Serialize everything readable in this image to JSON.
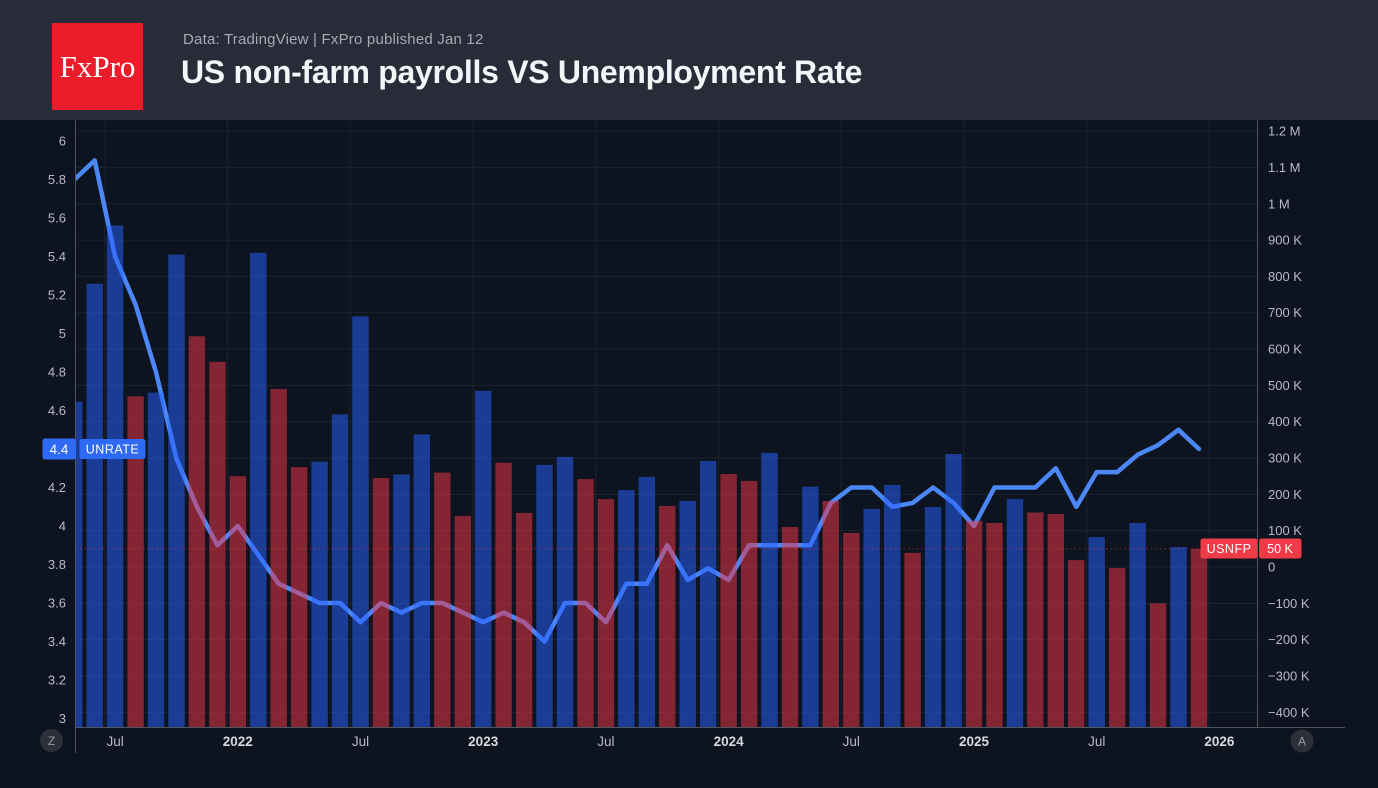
{
  "header": {
    "logo_text": "FxPro",
    "subtitle": "Data: TradingView  |  FxPro published Jan 12",
    "title": "US non-farm payrolls VS Unemployment Rate"
  },
  "badges": {
    "left": "Z",
    "right": "A"
  },
  "colors": {
    "page_bg": "#0d1420",
    "header_bg": "#272c38",
    "logo_bg": "#ec1c2b",
    "column_up": "#2962ff",
    "column_down": "#f23645",
    "line": "#4b87f7",
    "tag_blue": "#2f6af5",
    "tag_red": "#ef3b47",
    "axis_text": "#b7bbc5",
    "axis_text_bold": "#d6d9df",
    "axis_line": "#50555e",
    "grid": "rgba(205,210,222,0.08)"
  },
  "chart_data": {
    "type": "mixed",
    "title": "US non-farm payrolls VS Unemployment Rate",
    "legend_position": "price-tags-on-axes",
    "grid": true,
    "months": [
      "2021-05",
      "2021-06",
      "2021-07",
      "2021-08",
      "2021-09",
      "2021-10",
      "2021-11",
      "2021-12",
      "2022-01",
      "2022-02",
      "2022-03",
      "2022-04",
      "2022-05",
      "2022-06",
      "2022-07",
      "2022-08",
      "2022-09",
      "2022-10",
      "2022-11",
      "2022-12",
      "2023-01",
      "2023-02",
      "2023-03",
      "2023-04",
      "2023-05",
      "2023-06",
      "2023-07",
      "2023-08",
      "2023-09",
      "2023-10",
      "2023-11",
      "2023-12",
      "2024-01",
      "2024-02",
      "2024-03",
      "2024-04",
      "2024-05",
      "2024-06",
      "2024-07",
      "2024-08",
      "2024-09",
      "2024-10",
      "2024-11",
      "2024-12",
      "2025-01",
      "2025-02",
      "2025-03",
      "2025-04",
      "2025-05",
      "2025-06",
      "2025-07",
      "2025-08",
      "2025-09",
      "2025-10",
      "2025-11",
      "2025-12"
    ],
    "series": [
      {
        "name": "USNFP",
        "type": "column",
        "axis": "right",
        "unit": "thousands of jobs",
        "color_rising": "#2962ff",
        "color_falling": "#f23645",
        "values": [
          455,
          780,
          940,
          470,
          480,
          860,
          635,
          565,
          250,
          865,
          490,
          275,
          290,
          420,
          690,
          245,
          255,
          365,
          260,
          140,
          485,
          287,
          149,
          281,
          303,
          242,
          187,
          212,
          248,
          168,
          182,
          292,
          256,
          237,
          314,
          110,
          221,
          182,
          94,
          160,
          226,
          39,
          165,
          311,
          127,
          121,
          187,
          150,
          146,
          19,
          82,
          -3,
          121,
          -100,
          55,
          50
        ]
      },
      {
        "name": "UNRATE",
        "type": "line",
        "axis": "left",
        "unit": "%",
        "color": "#4b87f7",
        "values": [
          5.8,
          5.9,
          5.4,
          5.15,
          4.8,
          4.35,
          4.1,
          3.9,
          4.0,
          3.85,
          3.7,
          3.65,
          3.6,
          3.6,
          3.5,
          3.6,
          3.55,
          3.6,
          3.6,
          3.55,
          3.5,
          3.55,
          3.5,
          3.4,
          3.6,
          3.6,
          3.5,
          3.7,
          3.7,
          3.9,
          3.72,
          3.78,
          3.72,
          3.9,
          3.9,
          3.9,
          3.9,
          4.12,
          4.2,
          4.2,
          4.1,
          4.12,
          4.2,
          4.12,
          4.0,
          4.2,
          4.2,
          4.2,
          4.3,
          4.1,
          4.28,
          4.28,
          4.37,
          4.42,
          4.5,
          4.4
        ]
      }
    ],
    "left_axis": {
      "min": 3,
      "max": 6,
      "ticks": [
        {
          "label": "6",
          "value": 6
        },
        {
          "label": "5.8",
          "value": 5.8
        },
        {
          "label": "5.6",
          "value": 5.6
        },
        {
          "label": "5.4",
          "value": 5.4
        },
        {
          "label": "5.2",
          "value": 5.2
        },
        {
          "label": "5",
          "value": 5
        },
        {
          "label": "4.8",
          "value": 4.8
        },
        {
          "label": "4.6",
          "value": 4.6
        },
        {
          "label": "4.4",
          "value": 4.4
        },
        {
          "label": "4.2",
          "value": 4.2
        },
        {
          "label": "4",
          "value": 4
        },
        {
          "label": "3.8",
          "value": 3.8
        },
        {
          "label": "3.6",
          "value": 3.6
        },
        {
          "label": "3.4",
          "value": 3.4
        },
        {
          "label": "3.2",
          "value": 3.2
        },
        {
          "label": "3",
          "value": 3
        }
      ]
    },
    "right_axis": {
      "min": -430,
      "max": 1230,
      "ticks": [
        {
          "label": "1.2 M",
          "value": 1200
        },
        {
          "label": "1.1 M",
          "value": 1100
        },
        {
          "label": "1 M",
          "value": 1000
        },
        {
          "label": "900 K",
          "value": 900
        },
        {
          "label": "800 K",
          "value": 800
        },
        {
          "label": "700 K",
          "value": 700
        },
        {
          "label": "600 K",
          "value": 600
        },
        {
          "label": "500 K",
          "value": 500
        },
        {
          "label": "400 K",
          "value": 400
        },
        {
          "label": "300 K",
          "value": 300
        },
        {
          "label": "200 K",
          "value": 200
        },
        {
          "label": "100 K",
          "value": 100
        },
        {
          "label": "0",
          "value": 0
        },
        {
          "label": "−100 K",
          "value": -100
        },
        {
          "label": "−200 K",
          "value": -200
        },
        {
          "label": "−300 K",
          "value": -300
        },
        {
          "label": "−400 K",
          "value": -400
        }
      ]
    },
    "x_ticks": [
      {
        "label": "Jul",
        "month_index": 2,
        "bold": false
      },
      {
        "label": "2022",
        "month_index": 8,
        "bold": true
      },
      {
        "label": "Jul",
        "month_index": 14,
        "bold": false
      },
      {
        "label": "2023",
        "month_index": 20,
        "bold": true
      },
      {
        "label": "Jul",
        "month_index": 26,
        "bold": false
      },
      {
        "label": "2024",
        "month_index": 32,
        "bold": true
      },
      {
        "label": "Jul",
        "month_index": 38,
        "bold": false
      },
      {
        "label": "2025",
        "month_index": 44,
        "bold": true
      },
      {
        "label": "Jul",
        "month_index": 50,
        "bold": false
      },
      {
        "label": "2026",
        "month_index": 56,
        "bold": true
      }
    ],
    "last_values": {
      "unrate_value": "4.4",
      "unrate_series": "UNRATE",
      "usnfp_series": "USNFP",
      "usnfp_value": "50 K",
      "usnfp_level": 50
    }
  }
}
